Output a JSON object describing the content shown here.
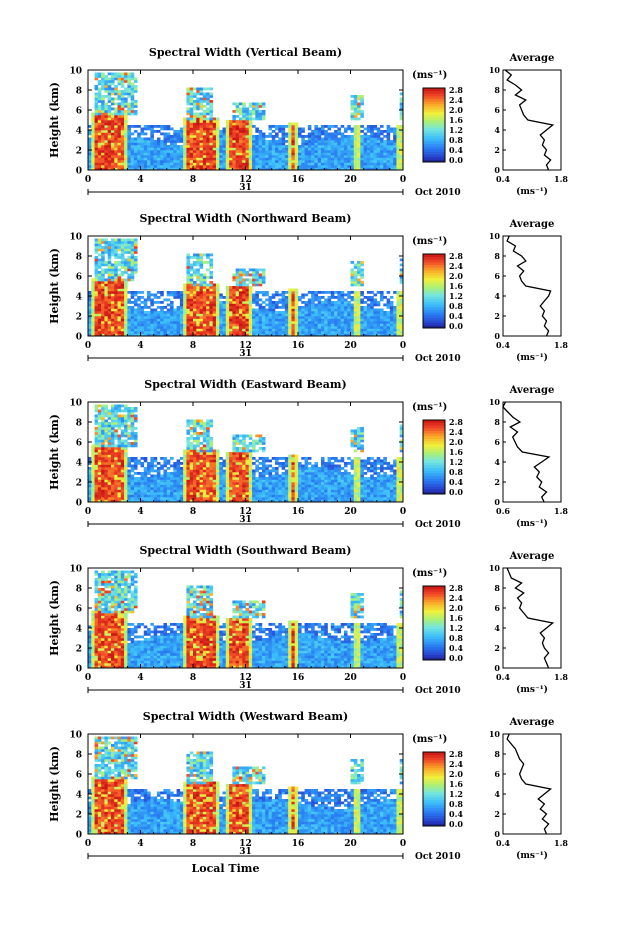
{
  "chart_data": [
    {
      "type": "heatmap",
      "title": "Spectral Width (Vertical Beam)",
      "ylabel": "Height (km)",
      "ylim": [
        0,
        10
      ],
      "yticks": [
        "0",
        "2",
        "4",
        "6",
        "8",
        "10"
      ],
      "xticks": [
        "0",
        "4",
        "8",
        "12",
        "16",
        "20",
        "0"
      ],
      "date_label": "31",
      "month_label": "Oct 2010",
      "colorbar_unit": "(ms⁻¹)",
      "colorbar_ticks": [
        "0.0",
        "0.4",
        "0.8",
        "1.2",
        "1.6",
        "2.0",
        "2.4",
        "2.8"
      ],
      "profile": {
        "title": "Average",
        "xticks": [
          "0.4",
          "1.8"
        ],
        "xlabel": "(ms⁻¹)",
        "yticks": [
          "0",
          "2",
          "4",
          "6",
          "8",
          "10"
        ],
        "height": [
          0,
          0.5,
          1,
          1.5,
          2,
          2.5,
          3,
          3.5,
          4,
          4.5,
          5,
          5.5,
          6,
          6.5,
          7,
          7.5,
          8,
          8.5,
          9,
          9.5,
          10
        ],
        "value": [
          1.5,
          1.45,
          1.55,
          1.4,
          1.45,
          1.35,
          1.4,
          1.3,
          1.45,
          1.6,
          1.0,
          0.9,
          0.85,
          0.8,
          0.95,
          0.7,
          0.85,
          0.7,
          0.5,
          0.6,
          0.45
        ]
      }
    },
    {
      "type": "heatmap",
      "title": "Spectral Width (Northward Beam)",
      "ylabel": "Height (km)",
      "ylim": [
        0,
        10
      ],
      "yticks": [
        "0",
        "2",
        "4",
        "6",
        "8",
        "10"
      ],
      "xticks": [
        "0",
        "4",
        "8",
        "12",
        "16",
        "20",
        "0"
      ],
      "date_label": "31",
      "month_label": "Oct 2010",
      "colorbar_unit": "(ms⁻¹)",
      "colorbar_ticks": [
        "0.0",
        "0.4",
        "0.8",
        "1.2",
        "1.6",
        "2.0",
        "2.4",
        "2.8"
      ],
      "profile": {
        "title": "Average",
        "xticks": [
          "0.4",
          "1.8"
        ],
        "xlabel": "(ms⁻¹)",
        "yticks": [
          "0",
          "2",
          "4",
          "6",
          "8",
          "10"
        ],
        "height": [
          0,
          0.5,
          1,
          1.5,
          2,
          2.5,
          3,
          3.5,
          4,
          4.5,
          5,
          5.5,
          6,
          6.5,
          7,
          7.5,
          8,
          8.5,
          9,
          9.5,
          10
        ],
        "value": [
          1.45,
          1.5,
          1.4,
          1.45,
          1.35,
          1.4,
          1.3,
          1.4,
          1.5,
          1.55,
          0.95,
          0.85,
          0.8,
          0.9,
          0.75,
          0.95,
          0.85,
          0.65,
          0.7,
          0.5,
          0.55
        ]
      }
    },
    {
      "type": "heatmap",
      "title": "Spectral Width (Eastward Beam)",
      "ylabel": "Height (km)",
      "ylim": [
        0,
        10
      ],
      "yticks": [
        "0",
        "2",
        "4",
        "6",
        "8",
        "10"
      ],
      "xticks": [
        "0",
        "4",
        "8",
        "12",
        "16",
        "20",
        "0"
      ],
      "date_label": "31",
      "month_label": "Oct 2010",
      "colorbar_unit": "(ms⁻¹)",
      "colorbar_ticks": [
        "0.0",
        "0.4",
        "0.8",
        "1.2",
        "1.6",
        "2.0",
        "2.4",
        "2.8"
      ],
      "profile": {
        "title": "Average",
        "xticks": [
          "0.6",
          "1.8"
        ],
        "xlabel": "(ms⁻¹)",
        "yticks": [
          "0",
          "2",
          "4",
          "6",
          "8",
          "10"
        ],
        "height": [
          0,
          0.5,
          1,
          1.5,
          2,
          2.5,
          3,
          3.5,
          4,
          4.5,
          5,
          5.5,
          6,
          6.5,
          7,
          7.5,
          8,
          8.5,
          9,
          9.5,
          10
        ],
        "value": [
          1.45,
          1.4,
          1.5,
          1.35,
          1.4,
          1.3,
          1.35,
          1.25,
          1.4,
          1.55,
          1.0,
          0.9,
          0.85,
          0.8,
          0.9,
          0.75,
          0.95,
          0.8,
          0.7,
          0.6,
          0.65
        ]
      }
    },
    {
      "type": "heatmap",
      "title": "Spectral Width (Southward Beam)",
      "ylabel": "Height (km)",
      "ylim": [
        0,
        10
      ],
      "yticks": [
        "0",
        "2",
        "4",
        "6",
        "8",
        "10"
      ],
      "xticks": [
        "0",
        "4",
        "8",
        "12",
        "16",
        "20",
        "0"
      ],
      "date_label": "31",
      "month_label": "Oct 2010",
      "colorbar_unit": "(ms⁻¹)",
      "colorbar_ticks": [
        "0.0",
        "0.4",
        "0.8",
        "1.2",
        "1.6",
        "2.0",
        "2.4",
        "2.8"
      ],
      "profile": {
        "title": "Average",
        "xticks": [
          "0.4",
          "1.8"
        ],
        "xlabel": "(ms⁻¹)",
        "yticks": [
          "0",
          "2",
          "4",
          "6",
          "8",
          "10"
        ],
        "height": [
          0,
          0.5,
          1,
          1.5,
          2,
          2.5,
          3,
          3.5,
          4,
          4.5,
          5,
          5.5,
          6,
          6.5,
          7,
          7.5,
          8,
          8.5,
          9,
          9.5,
          10
        ],
        "value": [
          1.5,
          1.45,
          1.4,
          1.5,
          1.4,
          1.35,
          1.4,
          1.3,
          1.45,
          1.6,
          1.0,
          0.9,
          0.8,
          0.85,
          0.75,
          0.9,
          0.7,
          0.85,
          0.6,
          0.55,
          0.5
        ]
      }
    },
    {
      "type": "heatmap",
      "title": "Spectral Width (Westward Beam)",
      "ylabel": "Height (km)",
      "ylim": [
        0,
        10
      ],
      "yticks": [
        "0",
        "2",
        "4",
        "6",
        "8",
        "10"
      ],
      "xticks": [
        "0",
        "4",
        "8",
        "12",
        "16",
        "20",
        "0"
      ],
      "date_label": "31",
      "month_label": "Oct 2010",
      "colorbar_unit": "(ms⁻¹)",
      "colorbar_ticks": [
        "0.0",
        "0.4",
        "0.8",
        "1.2",
        "1.6",
        "2.0",
        "2.4",
        "2.8"
      ],
      "xlabel": "Local Time",
      "profile": {
        "title": "Average",
        "xticks": [
          "0.4",
          "1.8"
        ],
        "xlabel": "(ms⁻¹)",
        "yticks": [
          "0",
          "2",
          "4",
          "6",
          "8",
          "10"
        ],
        "height": [
          0,
          0.5,
          1,
          1.5,
          2,
          2.5,
          3,
          3.5,
          4,
          4.5,
          5,
          5.5,
          6,
          6.5,
          7,
          7.5,
          8,
          8.5,
          9,
          9.5,
          10
        ],
        "value": [
          1.45,
          1.4,
          1.5,
          1.35,
          1.45,
          1.3,
          1.4,
          1.25,
          1.4,
          1.55,
          0.95,
          0.85,
          0.8,
          0.85,
          0.9,
          0.8,
          0.75,
          0.7,
          0.6,
          0.5,
          0.55
        ]
      }
    }
  ]
}
